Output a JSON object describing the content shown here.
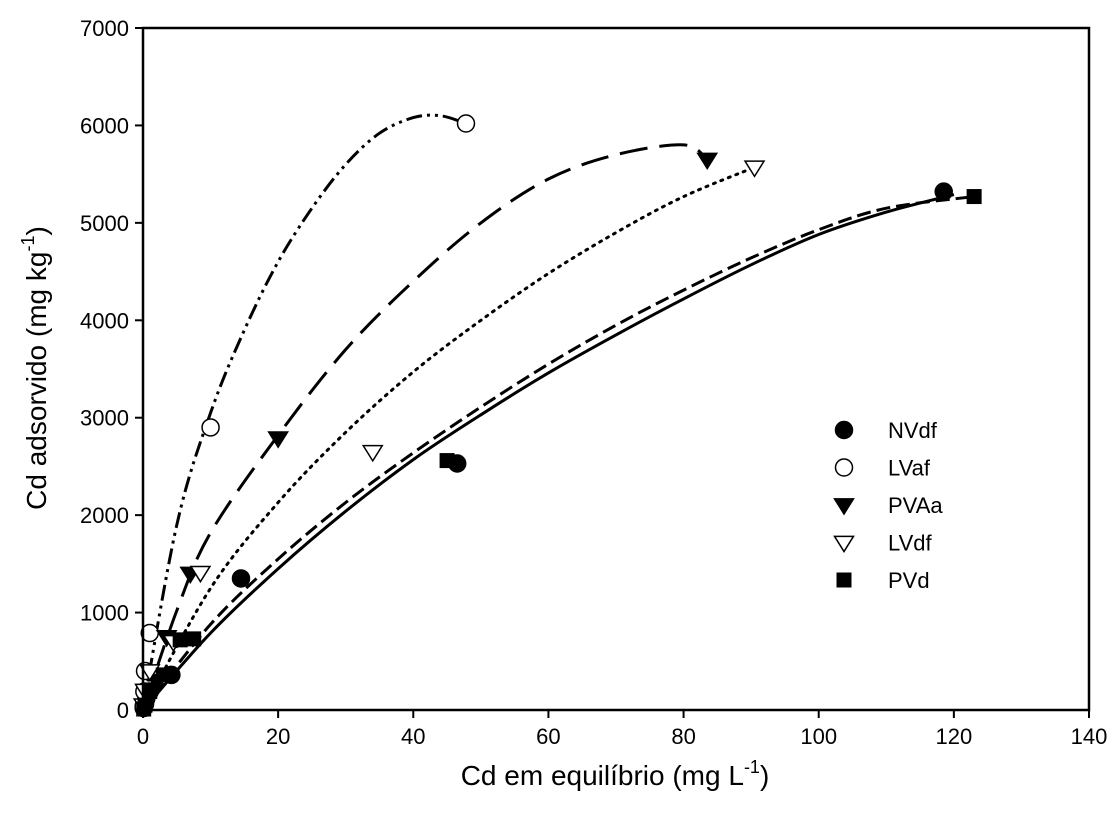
{
  "chart_data": {
    "type": "scatter",
    "xlabel": {
      "main": "Cd em equilíbrio (mg L",
      "sup": "-1",
      "tail": ")"
    },
    "ylabel": {
      "main": "Cd adsorvido (mg kg",
      "sup": "-1",
      "tail": ")"
    },
    "xlim": [
      0,
      140
    ],
    "ylim": [
      0,
      7000
    ],
    "xticks": [
      0,
      20,
      40,
      60,
      80,
      100,
      120,
      140
    ],
    "yticks": [
      0,
      1000,
      2000,
      3000,
      4000,
      5000,
      6000,
      7000
    ],
    "xtick_labels": [
      "0",
      "20",
      "40",
      "60",
      "80",
      "100",
      "120",
      "140"
    ],
    "ytick_labels": [
      "0",
      "1000",
      "2000",
      "3000",
      "4000",
      "5000",
      "6000",
      "7000"
    ],
    "grid": false,
    "legend_position": "right-middle",
    "series": [
      {
        "name": "NVdf",
        "marker": "filled-circle",
        "line_style": "solid",
        "points": [
          [
            0.1,
            20
          ],
          [
            0.3,
            60
          ],
          [
            0.5,
            120
          ],
          [
            1,
            190
          ],
          [
            4.2,
            360
          ],
          [
            14.5,
            1350
          ],
          [
            46.5,
            2530
          ],
          [
            118.5,
            5320
          ]
        ],
        "fit_curve": [
          [
            0,
            0
          ],
          [
            10,
            790
          ],
          [
            20,
            1450
          ],
          [
            30,
            2040
          ],
          [
            40,
            2570
          ],
          [
            50,
            3030
          ],
          [
            60,
            3460
          ],
          [
            70,
            3850
          ],
          [
            80,
            4220
          ],
          [
            90,
            4570
          ],
          [
            100,
            4880
          ],
          [
            110,
            5110
          ],
          [
            120,
            5290
          ]
        ]
      },
      {
        "name": "LVaf",
        "marker": "open-circle",
        "line_style": "dash-dot-dot",
        "points": [
          [
            0.1,
            40
          ],
          [
            0.2,
            190
          ],
          [
            0.3,
            400
          ],
          [
            1,
            790
          ],
          [
            10,
            2900
          ],
          [
            47.8,
            6020
          ]
        ],
        "fit_curve": [
          [
            0,
            0
          ],
          [
            5,
            1900
          ],
          [
            10,
            3050
          ],
          [
            15,
            3900
          ],
          [
            20,
            4600
          ],
          [
            25,
            5150
          ],
          [
            30,
            5600
          ],
          [
            35,
            5920
          ],
          [
            40,
            6080
          ],
          [
            44,
            6100
          ],
          [
            47.8,
            6020
          ]
        ]
      },
      {
        "name": "PVAa",
        "marker": "filled-triangle-down",
        "line_style": "long-dash",
        "points": [
          [
            0.5,
            200
          ],
          [
            2,
            300
          ],
          [
            3.5,
            750
          ],
          [
            7,
            1400
          ],
          [
            20,
            2790
          ],
          [
            83.5,
            5650
          ]
        ],
        "fit_curve": [
          [
            0,
            0
          ],
          [
            5,
            1020
          ],
          [
            10,
            1820
          ],
          [
            20,
            2820
          ],
          [
            30,
            3700
          ],
          [
            40,
            4400
          ],
          [
            50,
            5000
          ],
          [
            60,
            5450
          ],
          [
            70,
            5700
          ],
          [
            80,
            5800
          ],
          [
            83.5,
            5650
          ]
        ]
      },
      {
        "name": "LVdf",
        "marker": "open-triangle-down",
        "line_style": "dotted",
        "points": [
          [
            0.1,
            50
          ],
          [
            0.3,
            200
          ],
          [
            1,
            400
          ],
          [
            4.5,
            700
          ],
          [
            8.5,
            1410
          ],
          [
            34,
            2650
          ],
          [
            90.5,
            5570
          ]
        ],
        "fit_curve": [
          [
            0,
            0
          ],
          [
            10,
            1250
          ],
          [
            20,
            2130
          ],
          [
            30,
            2850
          ],
          [
            40,
            3470
          ],
          [
            50,
            4000
          ],
          [
            60,
            4480
          ],
          [
            70,
            4900
          ],
          [
            80,
            5270
          ],
          [
            90.5,
            5570
          ]
        ]
      },
      {
        "name": "PVd",
        "marker": "filled-square",
        "line_style": "dashed",
        "points": [
          [
            0.1,
            10
          ],
          [
            0.3,
            50
          ],
          [
            1,
            190
          ],
          [
            3,
            360
          ],
          [
            5.5,
            720
          ],
          [
            7.5,
            730
          ],
          [
            45,
            2560
          ],
          [
            123,
            5270
          ]
        ],
        "fit_curve": [
          [
            0,
            0
          ],
          [
            10,
            880
          ],
          [
            20,
            1550
          ],
          [
            30,
            2130
          ],
          [
            40,
            2640
          ],
          [
            50,
            3110
          ],
          [
            60,
            3550
          ],
          [
            70,
            3950
          ],
          [
            80,
            4310
          ],
          [
            90,
            4640
          ],
          [
            100,
            4930
          ],
          [
            110,
            5150
          ],
          [
            123,
            5270
          ]
        ]
      }
    ]
  }
}
